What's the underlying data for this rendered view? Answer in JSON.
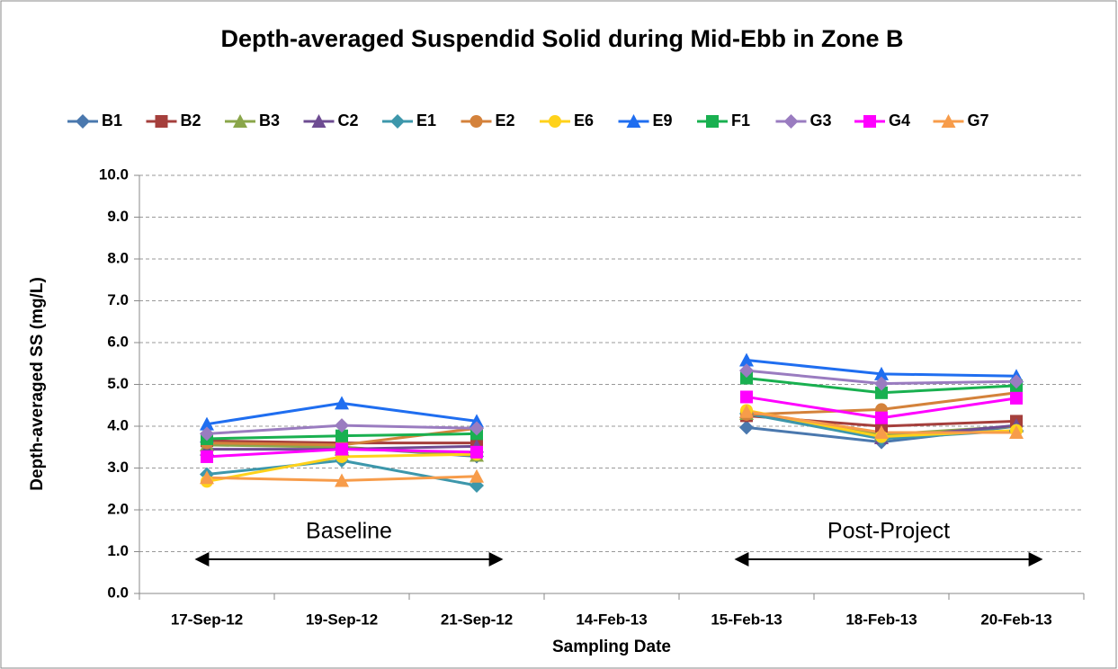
{
  "chart_data": {
    "type": "line",
    "title": "Depth-averaged Suspendid Solid during Mid-Ebb in Zone B",
    "x_label": "Sampling Date",
    "y_label": "Depth-averaged SS (mg/L)",
    "categories": [
      "17-Sep-12",
      "19-Sep-12",
      "21-Sep-12",
      "14-Feb-13",
      "15-Feb-13",
      "18-Feb-13",
      "20-Feb-13"
    ],
    "ylim": [
      0,
      10
    ],
    "yticks": [
      {
        "value": 0,
        "label": "0.0"
      },
      {
        "value": 1,
        "label": "1.0"
      },
      {
        "value": 2,
        "label": "2.0"
      },
      {
        "value": 3,
        "label": "3.0"
      },
      {
        "value": 4,
        "label": "4.0"
      },
      {
        "value": 5,
        "label": "5.0"
      },
      {
        "value": 6,
        "label": "6.0"
      },
      {
        "value": 7,
        "label": "7.0"
      },
      {
        "value": 8,
        "label": "8.0"
      },
      {
        "value": 9,
        "label": "9.0"
      },
      {
        "value": 10,
        "label": "10.0"
      }
    ],
    "grid": true,
    "legend": "top",
    "annotations": [
      "Baseline",
      "Post-Project"
    ],
    "series": [
      {
        "name": "B1",
        "color": "#4a78ae",
        "marker": "diamond",
        "values": [
          3.62,
          3.5,
          3.28,
          null,
          3.97,
          3.62,
          4.0
        ]
      },
      {
        "name": "B2",
        "color": "#a53f3c",
        "marker": "square",
        "values": [
          3.65,
          3.6,
          3.6,
          null,
          4.25,
          4.0,
          4.12
        ]
      },
      {
        "name": "B3",
        "color": "#8aa64a",
        "marker": "triangle",
        "values": [
          3.55,
          3.5,
          3.3,
          null,
          4.3,
          3.8,
          4.0
        ]
      },
      {
        "name": "C2",
        "color": "#6e4c92",
        "marker": "triangle",
        "values": [
          3.45,
          3.45,
          3.52,
          null,
          4.35,
          3.72,
          4.02
        ]
      },
      {
        "name": "E1",
        "color": "#3d97ab",
        "marker": "diamond",
        "values": [
          2.85,
          3.18,
          2.58,
          null,
          4.3,
          3.7,
          3.9
        ]
      },
      {
        "name": "E2",
        "color": "#d4823b",
        "marker": "circle",
        "values": [
          3.6,
          3.55,
          3.95,
          null,
          4.28,
          4.4,
          4.8
        ]
      },
      {
        "name": "E6",
        "color": "#ffd21a",
        "marker": "circle",
        "values": [
          2.68,
          3.27,
          3.33,
          null,
          4.38,
          3.75,
          3.9
        ]
      },
      {
        "name": "E9",
        "color": "#1f6ef0",
        "marker": "triangle",
        "values": [
          4.05,
          4.55,
          4.12,
          null,
          5.58,
          5.25,
          5.2
        ]
      },
      {
        "name": "F1",
        "color": "#19b050",
        "marker": "square",
        "values": [
          3.7,
          3.77,
          3.82,
          null,
          5.15,
          4.8,
          4.97
        ]
      },
      {
        "name": "G3",
        "color": "#9a7cc0",
        "marker": "diamond",
        "values": [
          3.82,
          4.02,
          3.95,
          null,
          5.33,
          5.02,
          5.07
        ]
      },
      {
        "name": "G4",
        "color": "#ff00ff",
        "marker": "square",
        "values": [
          3.27,
          3.45,
          3.38,
          null,
          4.7,
          4.2,
          4.67
        ]
      },
      {
        "name": "G7",
        "color": "#f79c4a",
        "marker": "triangle",
        "values": [
          2.77,
          2.7,
          2.8,
          null,
          4.35,
          3.85,
          3.85
        ]
      }
    ]
  }
}
